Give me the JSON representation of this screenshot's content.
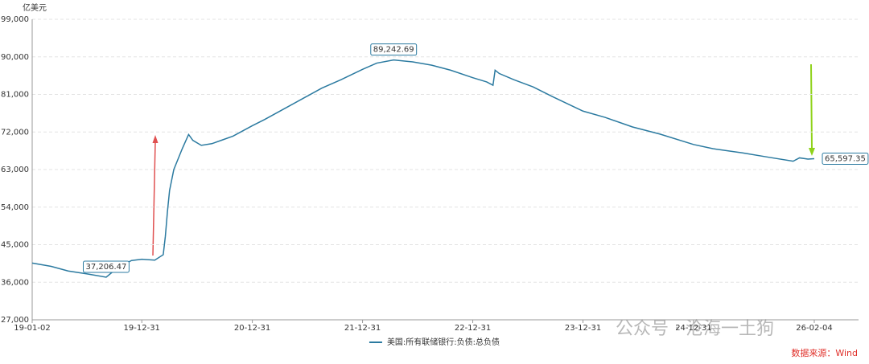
{
  "chart_data": {
    "type": "line",
    "unit_label": "亿美元",
    "x": [
      "19-01-02",
      "19-03-06",
      "19-05-01",
      "19-07-03",
      "19-09-04",
      "19-10-16",
      "19-11-27",
      "19-12-31",
      "20-02-12",
      "20-03-11",
      "20-03-18",
      "20-03-25",
      "20-04-01",
      "20-04-15",
      "20-05-13",
      "20-06-03",
      "20-06-17",
      "20-07-15",
      "20-08-19",
      "20-09-23",
      "20-10-28",
      "20-12-31",
      "21-02-10",
      "21-04-14",
      "21-06-16",
      "21-08-18",
      "21-10-20",
      "21-12-31",
      "22-02-16",
      "22-04-13",
      "22-06-15",
      "22-08-17",
      "22-10-19",
      "22-12-31",
      "23-02-15",
      "23-03-08",
      "23-03-15",
      "23-03-29",
      "23-05-17",
      "23-07-19",
      "23-09-20",
      "23-12-31",
      "24-03-13",
      "24-06-12",
      "24-09-11",
      "24-12-31",
      "25-03-05",
      "25-06-11",
      "25-09-10",
      "25-11-26",
      "25-12-17",
      "26-01-14",
      "26-02-04"
    ],
    "series": [
      {
        "name": "美国:所有联储银行:负债:总负债",
        "color": "#2b7aa0",
        "values": [
          40600,
          39800,
          38700,
          38000,
          37206.47,
          39700,
          41200,
          41500,
          41300,
          42600,
          47000,
          53000,
          58000,
          63000,
          68000,
          71400,
          70000,
          68800,
          69200,
          70100,
          71000,
          73500,
          75000,
          77500,
          80000,
          82500,
          84500,
          87000,
          88500,
          89242.69,
          88800,
          88000,
          86800,
          85000,
          84000,
          83200,
          86800,
          86000,
          84500,
          82800,
          80500,
          77000,
          75500,
          73200,
          71500,
          69000,
          68000,
          67000,
          65900,
          65000,
          65800,
          65500,
          65597.35
        ],
        "value_labels": [
          null,
          null,
          null,
          null,
          "37,206.47",
          null,
          null,
          null,
          null,
          null,
          null,
          null,
          null,
          null,
          null,
          null,
          null,
          null,
          null,
          null,
          null,
          null,
          null,
          null,
          null,
          null,
          null,
          null,
          null,
          "89,242.69",
          null,
          null,
          null,
          null,
          null,
          null,
          null,
          null,
          null,
          null,
          null,
          null,
          null,
          null,
          null,
          null,
          null,
          null,
          null,
          null,
          null,
          null,
          "65,597.35"
        ]
      }
    ],
    "xlim": [
      "19-01-02",
      "26-02-04"
    ],
    "xticks": [
      "19-01-02",
      "19-12-31",
      "20-12-31",
      "21-12-31",
      "22-12-31",
      "23-12-31",
      "24-12-31",
      "26-02-04"
    ],
    "ylim": [
      27000,
      99000
    ],
    "yticks": [
      {
        "value": 27000,
        "label": "27,000"
      },
      {
        "value": 36000,
        "label": "36,000"
      },
      {
        "value": 45000,
        "label": "45,000"
      },
      {
        "value": 54000,
        "label": "54,000"
      },
      {
        "value": 63000,
        "label": "63,000"
      },
      {
        "value": 72000,
        "label": "72,000"
      },
      {
        "value": 81000,
        "label": "81,000"
      },
      {
        "value": 90000,
        "label": "90,000"
      },
      {
        "value": 99000,
        "label": "99,000"
      }
    ],
    "grid": true,
    "legend": "bottom",
    "source": "数据来源：Wind",
    "watermark": "公众号 · 沧海一土狗"
  }
}
